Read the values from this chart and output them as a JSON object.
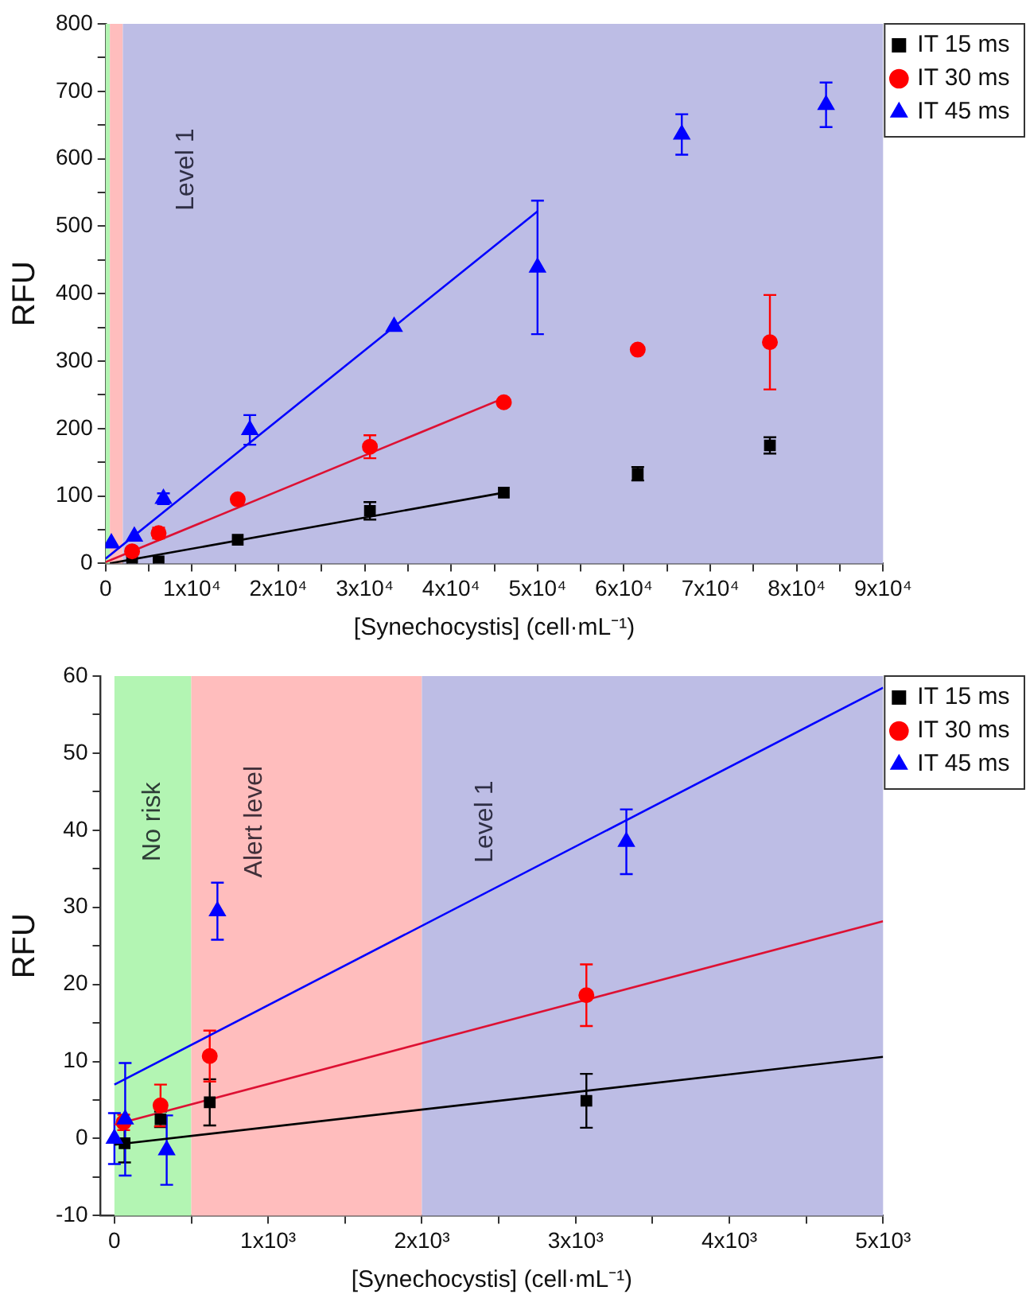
{
  "chart_data": [
    {
      "type": "scatter",
      "xlabel": "[Synechocystis] (cell·mL⁻¹)",
      "ylabel": "RFU",
      "legend": "top right",
      "xlim": [
        0,
        90000
      ],
      "ylim": [
        0,
        800
      ],
      "xticks": [
        0,
        {
          "value": 5000,
          "label": null
        },
        {
          "value": 10000,
          "label": "1x10⁴"
        },
        {
          "value": 15000,
          "label": null
        },
        {
          "value": 20000,
          "label": "2x10⁴"
        },
        {
          "value": 25000,
          "label": null
        },
        {
          "value": 30000,
          "label": "3x10⁴"
        },
        {
          "value": 35000,
          "label": null
        },
        {
          "value": 40000,
          "label": "4x10⁴"
        },
        {
          "value": 45000,
          "label": null
        },
        {
          "value": 50000,
          "label": "5x10⁴"
        },
        {
          "value": 55000,
          "label": null
        },
        {
          "value": 60000,
          "label": "6x10⁴"
        },
        {
          "value": 65000,
          "label": null
        },
        {
          "value": 70000,
          "label": "7x10⁴"
        },
        {
          "value": 75000,
          "label": null
        },
        {
          "value": 80000,
          "label": "8x10⁴"
        },
        {
          "value": 85000,
          "label": null
        },
        {
          "value": 90000,
          "label": "9x10⁴"
        }
      ],
      "yticks": [
        0,
        {
          "value": 50,
          "label": null
        },
        100,
        {
          "value": 150,
          "label": null
        },
        200,
        {
          "value": 250,
          "label": null
        },
        300,
        {
          "value": 350,
          "label": null
        },
        400,
        {
          "value": 450,
          "label": null
        },
        500,
        {
          "value": 550,
          "label": null
        },
        600,
        {
          "value": 650,
          "label": null
        },
        700,
        {
          "value": 750,
          "label": null
        },
        800
      ],
      "bands": [
        {
          "axis": "x",
          "from": 0,
          "to": 500,
          "label": null,
          "color": "#b3f5b3"
        },
        {
          "axis": "x",
          "from": 500,
          "to": 2000,
          "label": null,
          "color": "#ffbdbd"
        },
        {
          "axis": "x",
          "from": 2000,
          "to": 90000,
          "label": "Level 1",
          "color": "#bdbde5"
        }
      ],
      "series": [
        {
          "name": "IT 15 ms",
          "type": "scatter",
          "marker": "square",
          "color": "#000000",
          "x": [
            3070,
            6140,
            15300,
            30600,
            46100,
            61600,
            76900
          ],
          "values": [
            5,
            3,
            35,
            78,
            105,
            133,
            175
          ],
          "errors": [
            null,
            null,
            null,
            13,
            null,
            10,
            12
          ]
        },
        {
          "name": "IT 30 ms",
          "type": "scatter",
          "marker": "circle",
          "color": "#ff0000",
          "x": [
            3070,
            6140,
            15300,
            30600,
            46100,
            61600,
            76900
          ],
          "values": [
            18,
            45,
            95,
            173,
            239,
            317,
            328
          ],
          "errors": [
            null,
            8,
            null,
            17,
            null,
            null,
            70
          ]
        },
        {
          "name": "IT 45 ms",
          "type": "scatter",
          "marker": "triangle",
          "color": "#0000ff",
          "x": [
            670,
            3330,
            6700,
            16700,
            33400,
            50000,
            66700,
            83400
          ],
          "values": [
            30,
            40,
            96,
            198,
            351,
            439,
            636,
            680
          ],
          "errors": [
            null,
            null,
            8,
            22,
            null,
            99,
            30,
            33
          ]
        },
        {
          "type": "line",
          "color": "#000000",
          "x": [
            500,
            46100
          ],
          "values": [
            0,
            105
          ]
        },
        {
          "type": "line",
          "color": "#dd1133",
          "x": [
            0,
            46100
          ],
          "values": [
            2,
            245
          ]
        },
        {
          "type": "line",
          "color": "#0000ff",
          "x": [
            0,
            50000
          ],
          "values": [
            7,
            522
          ]
        }
      ]
    },
    {
      "type": "scatter",
      "xlabel": "[Synechocystis] (cell·mL⁻¹)",
      "ylabel": "RFU",
      "legend": "top right",
      "xlim": [
        -90,
        5000
      ],
      "ylim": [
        -10,
        60
      ],
      "xticks": [
        0,
        {
          "value": 500,
          "label": null
        },
        {
          "value": 1000,
          "label": "1x10³"
        },
        {
          "value": 1500,
          "label": null
        },
        {
          "value": 2000,
          "label": "2x10³"
        },
        {
          "value": 2500,
          "label": null
        },
        {
          "value": 3000,
          "label": "3x10³"
        },
        {
          "value": 3500,
          "label": null
        },
        {
          "value": 4000,
          "label": "4x10³"
        },
        {
          "value": 4500,
          "label": null
        },
        {
          "value": 5000,
          "label": "5x10³"
        }
      ],
      "yticks": [
        -10,
        {
          "value": -5,
          "label": null
        },
        0,
        {
          "value": 5,
          "label": null
        },
        10,
        {
          "value": 15,
          "label": null
        },
        20,
        {
          "value": 25,
          "label": null
        },
        30,
        {
          "value": 35,
          "label": null
        },
        40,
        {
          "value": 45,
          "label": null
        },
        50,
        {
          "value": 55,
          "label": null
        },
        60
      ],
      "bands": [
        {
          "axis": "x",
          "from": 0,
          "to": 500,
          "label": "No risk",
          "color": "#b3f5b3"
        },
        {
          "axis": "x",
          "from": 500,
          "to": 2000,
          "label": "Alert level",
          "color": "#ffbdbd"
        },
        {
          "axis": "x",
          "from": 2000,
          "to": 5000,
          "label": "Level 1",
          "color": "#bdbde5"
        }
      ],
      "series": [
        {
          "name": "IT 15 ms",
          "type": "scatter",
          "marker": "square",
          "color": "#000000",
          "x": [
            66,
            300,
            620,
            3070
          ],
          "values": [
            -0.6,
            2.5,
            4.7,
            4.9
          ],
          "errors": [
            2.5,
            1,
            3,
            3.5
          ]
        },
        {
          "name": "IT 30 ms",
          "type": "scatter",
          "marker": "circle",
          "color": "#ff0000",
          "x": [
            60,
            300,
            620,
            3070
          ],
          "values": [
            2.1,
            4.3,
            10.7,
            18.6
          ],
          "errors": [
            1,
            2.7,
            3.3,
            4
          ]
        },
        {
          "name": "IT 45 ms",
          "type": "scatter",
          "marker": "triangle",
          "color": "#0000ff",
          "x": [
            0,
            70,
            340,
            670,
            3330
          ],
          "values": [
            0,
            2.5,
            -1.5,
            29.5,
            38.5
          ],
          "errors": [
            3.3,
            7.3,
            4.5,
            3.7,
            4.2
          ]
        },
        {
          "type": "line",
          "color": "#000000",
          "x": [
            0,
            5000
          ],
          "values": [
            -0.8,
            10.6
          ]
        },
        {
          "type": "line",
          "color": "#dd1133",
          "x": [
            0,
            5000
          ],
          "values": [
            1.8,
            28.2
          ]
        },
        {
          "type": "line",
          "color": "#0000ff",
          "x": [
            0,
            5000
          ],
          "values": [
            7,
            58.5
          ]
        }
      ]
    }
  ]
}
